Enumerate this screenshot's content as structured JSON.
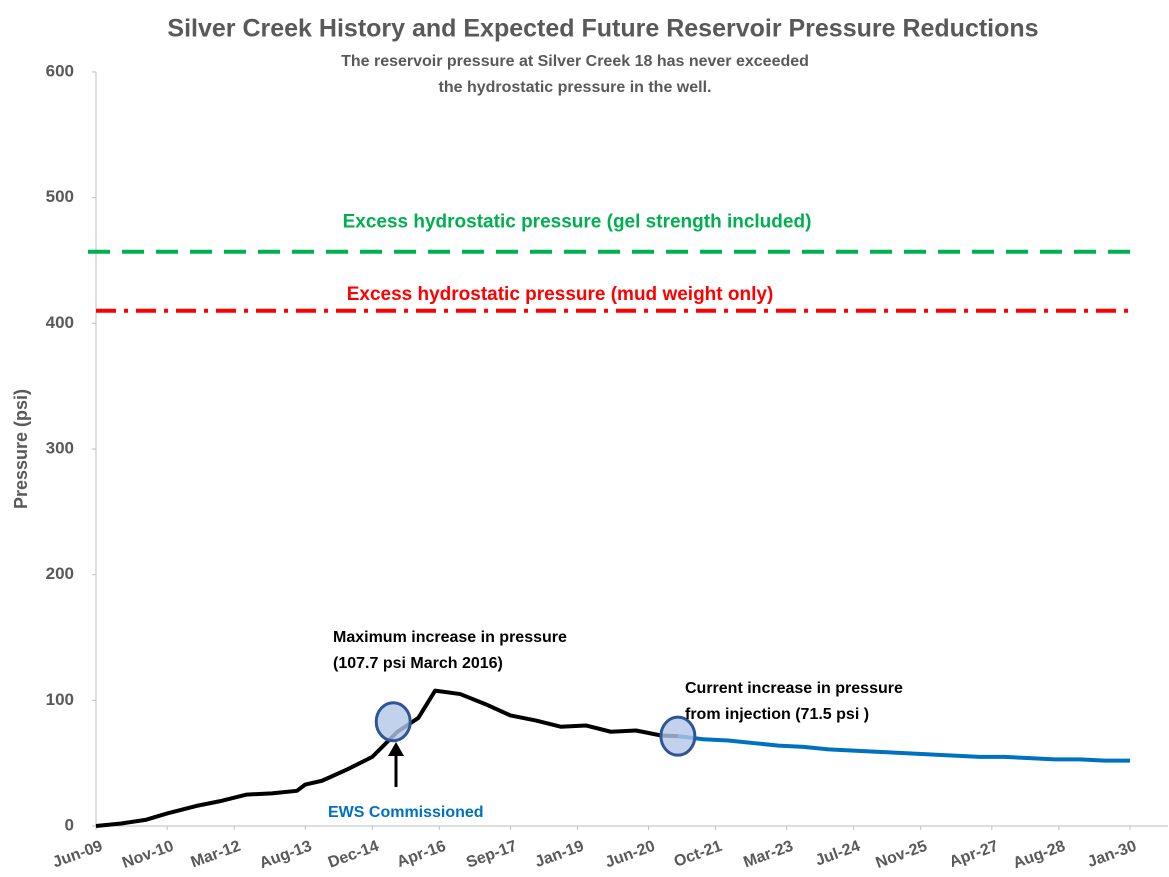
{
  "chart_data": {
    "type": "line",
    "title": "Silver Creek History and Expected Future Reservoir Pressure Reductions",
    "subtitle": [
      "The reservoir pressure at Silver Creek 18 has never exceeded",
      "the hydrostatic pressure in the well."
    ],
    "ylabel": "Pressure (psi)",
    "ylim": [
      0,
      600
    ],
    "yticks": [
      0,
      100,
      200,
      300,
      400,
      500,
      600
    ],
    "xlim": [
      "2009-06",
      "2030-01"
    ],
    "xticks": [
      {
        "value": "2009-06",
        "label": "Jun-09"
      },
      {
        "value": "2010-11",
        "label": "Nov-10"
      },
      {
        "value": "2012-03",
        "label": "Mar-12"
      },
      {
        "value": "2013-08",
        "label": "Aug-13"
      },
      {
        "value": "2014-12",
        "label": "Dec-14"
      },
      {
        "value": "2016-04",
        "label": "Apr-16"
      },
      {
        "value": "2017-09",
        "label": "Sep-17"
      },
      {
        "value": "2019-01",
        "label": "Jan-19"
      },
      {
        "value": "2020-06",
        "label": "Jun-20"
      },
      {
        "value": "2021-10",
        "label": "Oct-21"
      },
      {
        "value": "2023-03",
        "label": "Mar-23"
      },
      {
        "value": "2024-07",
        "label": "Jul-24"
      },
      {
        "value": "2025-11",
        "label": "Nov-25"
      },
      {
        "value": "2027-04",
        "label": "Apr-27"
      },
      {
        "value": "2028-08",
        "label": "Aug-28"
      },
      {
        "value": "2030-01",
        "label": "Jan-30"
      }
    ],
    "grid": false,
    "series": [
      {
        "color": "#000000",
        "x": [
          "2009-06",
          "2009-12",
          "2010-06",
          "2010-11",
          "2011-06",
          "2011-12",
          "2012-06",
          "2012-12",
          "2013-06",
          "2013-08",
          "2013-12",
          "2014-06",
          "2014-12",
          "2015-06",
          "2015-11",
          "2016-03",
          "2016-09",
          "2017-03",
          "2017-09",
          "2018-03",
          "2018-09",
          "2019-03",
          "2019-09",
          "2020-03",
          "2020-09",
          "2021-01"
        ],
        "values": [
          0,
          2,
          5,
          10,
          16,
          20,
          25,
          26,
          28,
          33,
          36,
          45,
          55,
          75,
          86,
          107.7,
          105,
          97,
          88,
          84,
          79,
          80,
          75,
          76,
          72,
          71.5
        ]
      },
      {
        "color": "#0070c0",
        "x": [
          "2021-01",
          "2021-07",
          "2022-01",
          "2022-07",
          "2023-01",
          "2023-07",
          "2024-01",
          "2024-07",
          "2025-01",
          "2025-07",
          "2026-01",
          "2026-07",
          "2027-01",
          "2027-07",
          "2028-01",
          "2028-07",
          "2029-01",
          "2029-07",
          "2030-01"
        ],
        "values": [
          71.5,
          69,
          68,
          66,
          64,
          63,
          61,
          60,
          59,
          58,
          57,
          56,
          55,
          55,
          54,
          53,
          53,
          52,
          52
        ]
      }
    ],
    "hlines": [
      {
        "value": 457,
        "label": "Excess hydrostatic pressure (gel strength included)",
        "color": "#00b050",
        "style": "dashed"
      },
      {
        "value": 410,
        "label": "Excess hydrostatic pressure (mud weight only)",
        "color": "#ff0000",
        "style": "dashdot"
      }
    ],
    "highlights": [
      {
        "x": "2015-05",
        "y": 83
      },
      {
        "x": "2021-01",
        "y": 71.5
      }
    ],
    "annotations": [
      {
        "lines": [
          "Maximum increase in pressure",
          "(107.7 psi March 2016)"
        ],
        "color": "#000000"
      },
      {
        "lines": [
          "Current increase in pressure",
          "from injection (71.5 psi )"
        ],
        "color": "#000000"
      },
      {
        "lines": [
          "EWS Commissioned"
        ],
        "color": "#0070c0"
      }
    ]
  }
}
